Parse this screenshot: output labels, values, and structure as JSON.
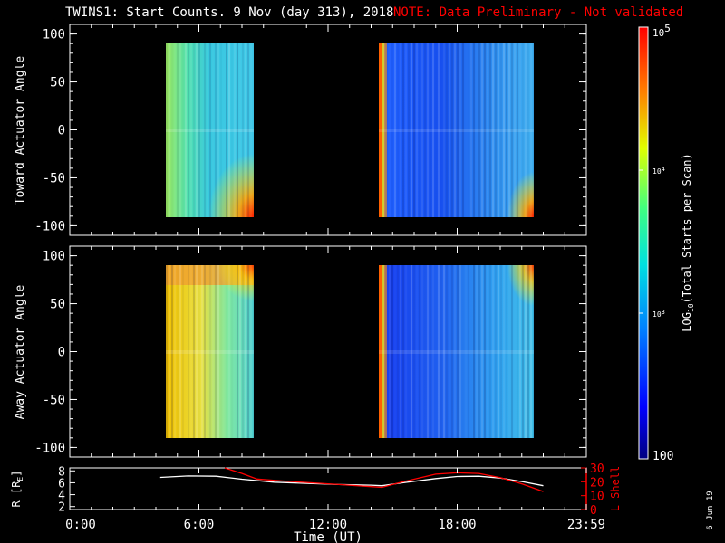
{
  "header": {
    "title": "TWINS1: Start Counts.  9 Nov (day 313), 2018",
    "note": "NOTE: Data Preliminary - Not validated",
    "note_color": "#ff0000"
  },
  "side_label": "6 Jun 19",
  "chart_data": [
    {
      "type": "heatmap",
      "panel": "toward",
      "ylabel": "Toward Actuator Angle",
      "ylim": [
        -110,
        110
      ],
      "yticks": [
        "100",
        "50",
        "0",
        "-50",
        "-100"
      ],
      "xlim_hours": [
        0,
        24
      ],
      "angle_range": [
        -90,
        90
      ],
      "coverage_hours": [
        [
          4.2,
          8.7
        ],
        [
          14.5,
          22.0
        ]
      ],
      "color_scale": "rainbow, log10 counts 100 to 100000",
      "grid": false
    },
    {
      "type": "heatmap",
      "panel": "away",
      "ylabel": "Away Actuator Angle",
      "ylim": [
        -110,
        110
      ],
      "yticks": [
        "100",
        "50",
        "0",
        "-50",
        "-100"
      ],
      "xlim_hours": [
        0,
        24
      ],
      "angle_range": [
        -90,
        90
      ],
      "coverage_hours": [
        [
          4.2,
          8.7
        ],
        [
          14.5,
          22.0
        ]
      ],
      "color_scale": "rainbow, log10 counts 100 to 100000",
      "grid": false
    },
    {
      "type": "line",
      "panel": "ephemeris",
      "xlabel": "Time (UT)",
      "xticks": [
        "0:00",
        "6:00",
        "12:00",
        "18:00",
        "23:59"
      ],
      "left_axis": {
        "label_main": "R [R",
        "label_sub": "E",
        "label_end": "]",
        "ticks": [
          "8",
          "6",
          "4",
          "2"
        ],
        "ylim": [
          1.5,
          8.5
        ]
      },
      "right_axis": {
        "label": "L Shell",
        "ticks": [
          "30",
          "20",
          "10",
          "0"
        ],
        "ylim": [
          0,
          30
        ],
        "color": "#ff0000"
      },
      "series": [
        {
          "axis": "left",
          "color": "#ffffff",
          "points": [
            [
              4.2,
              6.9
            ],
            [
              5.5,
              7.15
            ],
            [
              6.8,
              7.1
            ],
            [
              8.0,
              6.6
            ],
            [
              9.5,
              6.1
            ],
            [
              11.0,
              5.9
            ],
            [
              12.5,
              5.7
            ],
            [
              14.0,
              5.6
            ],
            [
              14.5,
              5.5
            ],
            [
              15.5,
              6.0
            ],
            [
              17.0,
              6.7
            ],
            [
              18.0,
              7.05
            ],
            [
              19.0,
              7.1
            ],
            [
              20.0,
              6.8
            ],
            [
              21.0,
              6.2
            ],
            [
              22.0,
              5.5
            ]
          ]
        },
        {
          "axis": "right",
          "color": "#ff0000",
          "points": [
            [
              7.2,
              30
            ],
            [
              8.0,
              26
            ],
            [
              8.7,
              22
            ],
            [
              10.0,
              20.5
            ],
            [
              12.0,
              18.5
            ],
            [
              14.0,
              16.5
            ],
            [
              14.5,
              16
            ],
            [
              15.5,
              20
            ],
            [
              17.0,
              25.5
            ],
            [
              18.0,
              26.5
            ],
            [
              19.0,
              26
            ],
            [
              20.0,
              23
            ],
            [
              21.0,
              18.5
            ],
            [
              22.0,
              13
            ]
          ]
        }
      ]
    }
  ],
  "colorbar": {
    "label_main": "LOG",
    "label_sub": "10",
    "label_rest": "(Total Starts per Scan)",
    "tick_top_base": "10",
    "tick_top_exp": "5",
    "tick_mid_base": "10",
    "tick_mid_exp": "4",
    "tick_low_base": "10",
    "tick_low_exp": "3",
    "tick_bottom": "100",
    "range": [
      100,
      100000
    ]
  }
}
